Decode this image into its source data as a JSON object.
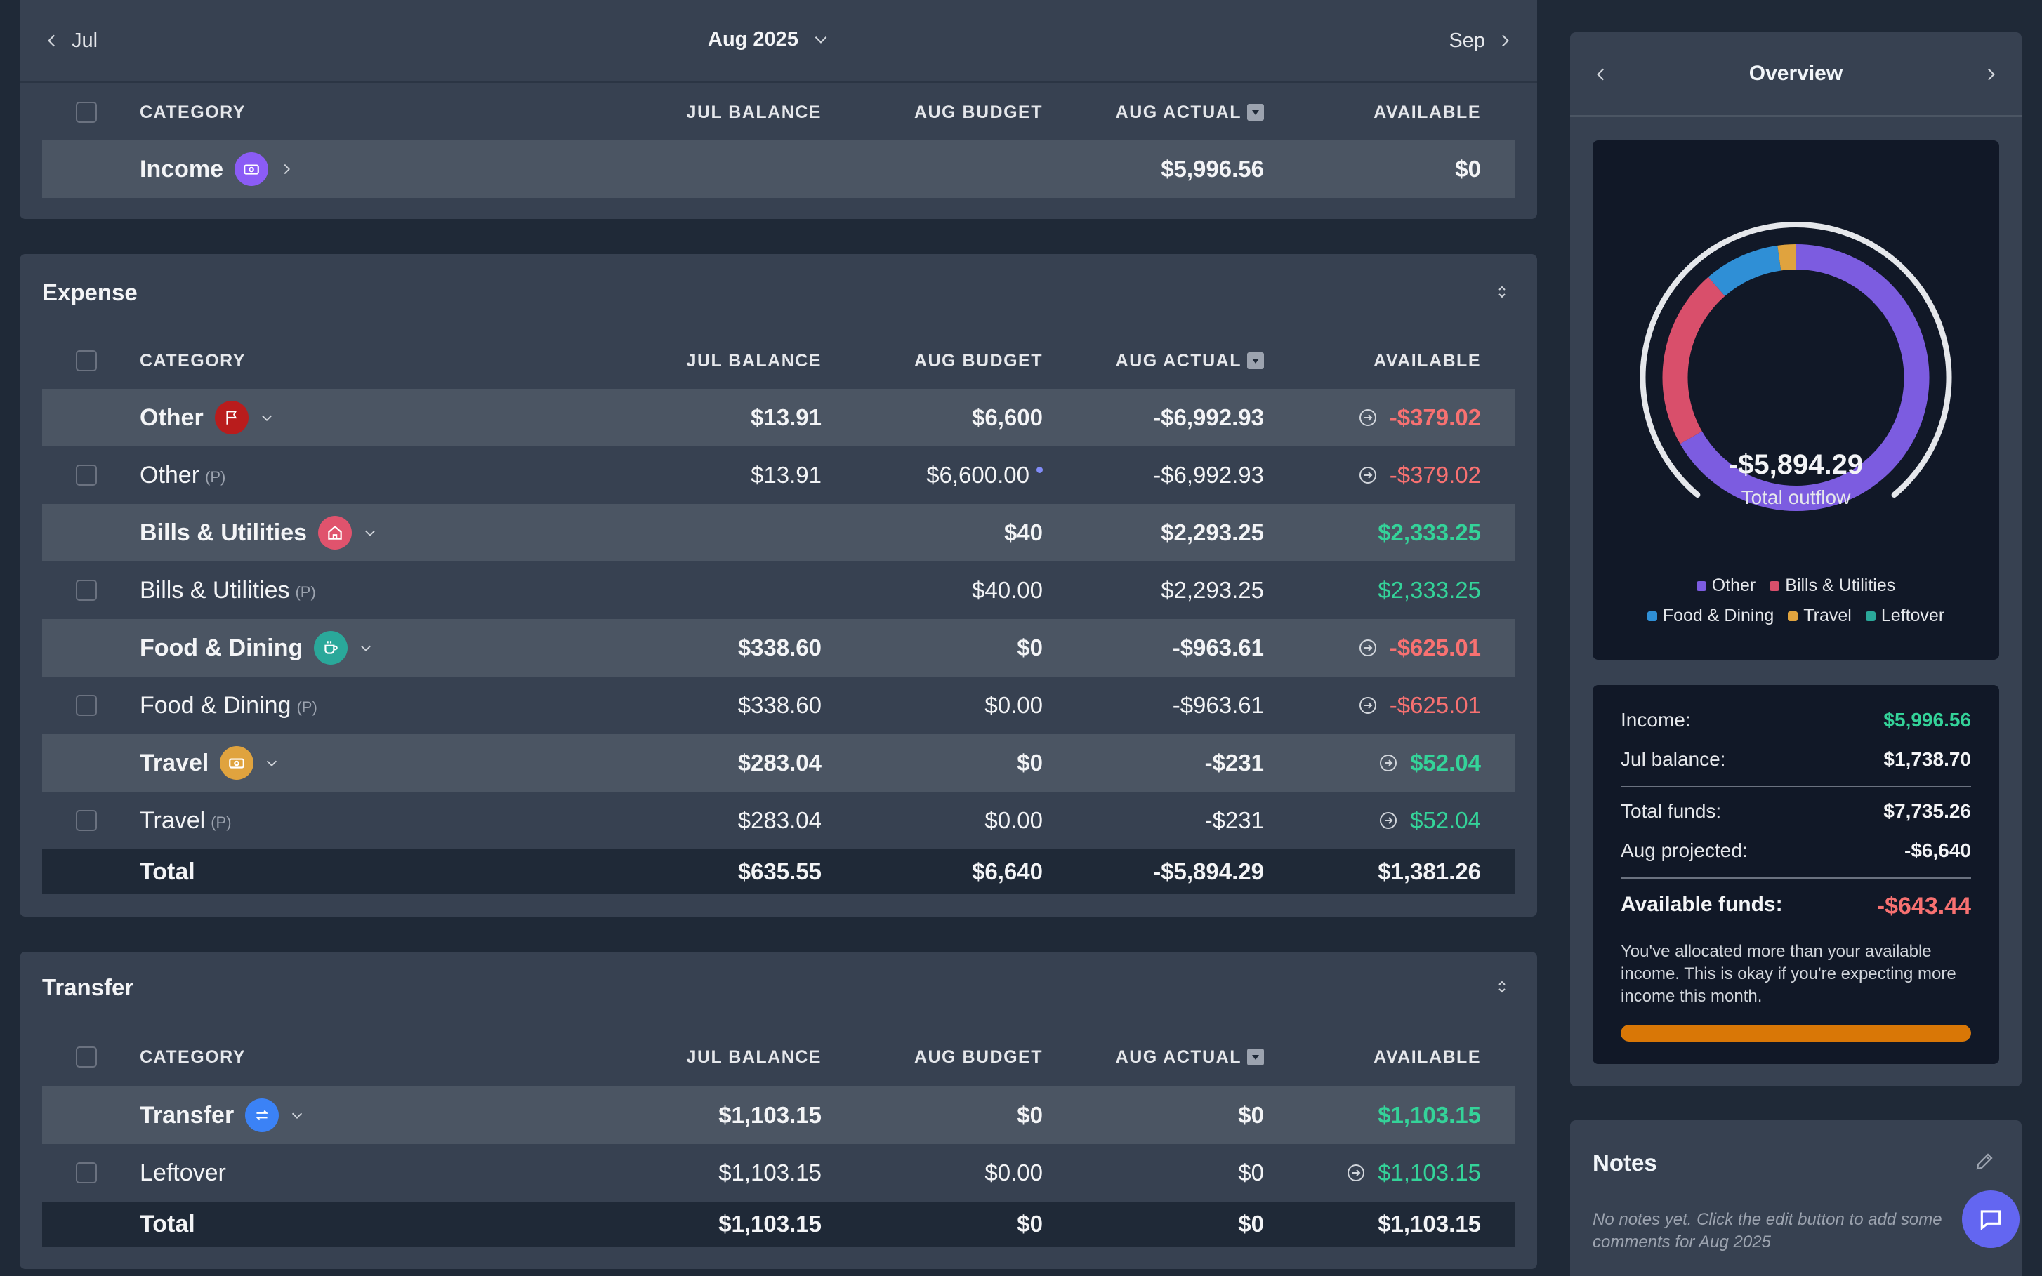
{
  "nav": {
    "prev": "Jul",
    "current": "Aug 2025",
    "next": "Sep"
  },
  "columns": {
    "category": "CATEGORY",
    "jul_balance": "JUL BALANCE",
    "aug_budget": "AUG BUDGET",
    "aug_actual": "AUG ACTUAL",
    "available": "AVAILABLE"
  },
  "income": {
    "name": "Income",
    "actual": "$5,996.56",
    "available": "$0"
  },
  "expense": {
    "title": "Expense",
    "rows": [
      {
        "name": "Other",
        "jul": "$13.91",
        "budget": "$6,600",
        "actual": "-$6,992.93",
        "available": "-$379.02"
      },
      {
        "name": "Other",
        "tag": "(P)",
        "jul": "$13.91",
        "budget": "$6,600.00",
        "actual": "-$6,992.93",
        "available": "-$379.02"
      },
      {
        "name": "Bills & Utilities",
        "jul": "",
        "budget": "$40",
        "actual": "$2,293.25",
        "available": "$2,333.25"
      },
      {
        "name": "Bills & Utilities",
        "tag": "(P)",
        "jul": "",
        "budget": "$40.00",
        "actual": "$2,293.25",
        "available": "$2,333.25"
      },
      {
        "name": "Food & Dining",
        "jul": "$338.60",
        "budget": "$0",
        "actual": "-$963.61",
        "available": "-$625.01"
      },
      {
        "name": "Food & Dining",
        "tag": "(P)",
        "jul": "$338.60",
        "budget": "$0.00",
        "actual": "-$963.61",
        "available": "-$625.01"
      },
      {
        "name": "Travel",
        "jul": "$283.04",
        "budget": "$0",
        "actual": "-$231",
        "available": "$52.04"
      },
      {
        "name": "Travel",
        "tag": "(P)",
        "jul": "$283.04",
        "budget": "$0.00",
        "actual": "-$231",
        "available": "$52.04"
      }
    ],
    "total": {
      "name": "Total",
      "jul": "$635.55",
      "budget": "$6,640",
      "actual": "-$5,894.29",
      "available": "$1,381.26"
    }
  },
  "transfer": {
    "title": "Transfer",
    "rows": [
      {
        "name": "Transfer",
        "jul": "$1,103.15",
        "budget": "$0",
        "actual": "$0",
        "available": "$1,103.15"
      },
      {
        "name": "Leftover",
        "jul": "$1,103.15",
        "budget": "$0.00",
        "actual": "$0",
        "available": "$1,103.15"
      }
    ],
    "total": {
      "name": "Total",
      "jul": "$1,103.15",
      "budget": "$0",
      "actual": "$0",
      "available": "$1,103.15"
    }
  },
  "overview": {
    "title": "Overview",
    "center_amount": "-$5,894.29",
    "center_label": "Total outflow",
    "legend": [
      "Other",
      "Bills & Utilities",
      "Food & Dining",
      "Travel",
      "Leftover"
    ],
    "funds": {
      "income_label": "Income:",
      "income": "$5,996.56",
      "jul_balance_label": "Jul balance:",
      "jul_balance": "$1,738.70",
      "total_funds_label": "Total funds:",
      "total_funds": "$7,735.26",
      "projected_label": "Aug projected:",
      "projected": "-$6,640",
      "available_label": "Available funds:",
      "available": "-$643.44",
      "note": "You've allocated more than your available income. This is okay if you're expecting more income this month.",
      "progress": 1.0
    }
  },
  "notes": {
    "title": "Notes",
    "empty": "No notes yet. Click the edit button to add some comments for Aug 2025"
  },
  "chart_data": {
    "type": "pie",
    "title": "",
    "center_text": "-$5,894.29",
    "categories": [
      "Other",
      "Bills & Utilities",
      "Food & Dining",
      "Travel",
      "Leftover"
    ],
    "values": [
      6992.93,
      2293.25,
      963.61,
      231,
      0
    ],
    "colors": [
      "#7c5ce0",
      "#d94f6b",
      "#2f8fd6",
      "#e0a33e",
      "#2aa89a"
    ],
    "legend": "bottom"
  },
  "colors": {
    "positive": "#34d399",
    "negative": "#f87171",
    "accent": "#6366f1",
    "warning": "#d97706"
  }
}
